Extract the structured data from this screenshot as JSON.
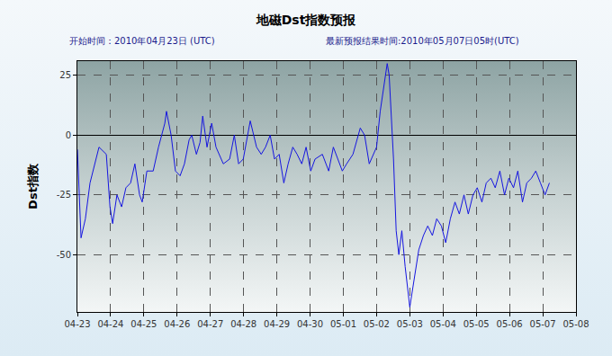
{
  "chart_data": {
    "type": "line",
    "title": "地磁Dst指数预报",
    "annotations": [
      "开始时间：2010年04月23日 (UTC)",
      "最新预报结果时间:2010年05月07日05时(UTC)"
    ],
    "ylabel": "Dst指数",
    "x": [
      0,
      0.11,
      0.24,
      0.38,
      0.65,
      0.87,
      0.98,
      1.06,
      1.19,
      1.33,
      1.46,
      1.6,
      1.73,
      1.87,
      1.95,
      2.09,
      2.28,
      2.44,
      2.63,
      2.68,
      2.82,
      2.95,
      3.09,
      3.22,
      3.36,
      3.44,
      3.58,
      3.69,
      3.77,
      3.9,
      4.04,
      4.17,
      4.39,
      4.58,
      4.72,
      4.85,
      4.99,
      5.12,
      5.2,
      5.39,
      5.53,
      5.66,
      5.8,
      5.93,
      6.07,
      6.21,
      6.34,
      6.48,
      6.61,
      6.75,
      6.88,
      7.02,
      7.15,
      7.37,
      7.56,
      7.7,
      7.83,
      7.97,
      8.1,
      8.29,
      8.51,
      8.64,
      8.78,
      9.0,
      9.11,
      9.32,
      9.38,
      9.51,
      9.59,
      9.67,
      9.76,
      9.86,
      10.0,
      10.14,
      10.27,
      10.41,
      10.54,
      10.68,
      10.81,
      10.95,
      11.08,
      11.22,
      11.36,
      11.49,
      11.63,
      11.76,
      11.9,
      12.03,
      12.17,
      12.3,
      12.44,
      12.57,
      12.71,
      12.85,
      12.98,
      13.12,
      13.25,
      13.39,
      13.52,
      13.66,
      13.79,
      13.93,
      14.07,
      14.2
    ],
    "series": [
      {
        "name": "Dst",
        "color": "#1515e0",
        "values": [
          -6,
          -43,
          -35,
          -20,
          -5,
          -8,
          -30,
          -37,
          -25,
          -30,
          -22,
          -20,
          -12,
          -25,
          -28,
          -15,
          -15,
          -5,
          5,
          10,
          0,
          -15,
          -17,
          -12,
          -2,
          0,
          -8,
          -3,
          8,
          -5,
          5,
          -5,
          -12,
          -10,
          0,
          -12,
          -10,
          0,
          6,
          -5,
          -8,
          -5,
          0,
          -10,
          -8,
          -20,
          -12,
          -5,
          -8,
          -12,
          -5,
          -15,
          -10,
          -8,
          -15,
          -5,
          -10,
          -15,
          -12,
          -8,
          3,
          0,
          -12,
          -5,
          10,
          30,
          25,
          -10,
          -40,
          -50,
          -40,
          -55,
          -72,
          -60,
          -48,
          -42,
          -38,
          -42,
          -35,
          -38,
          -45,
          -35,
          -28,
          -33,
          -25,
          -33,
          -25,
          -22,
          -28,
          -20,
          -18,
          -22,
          -15,
          -25,
          -18,
          -22,
          -15,
          -28,
          -20,
          -18,
          -15,
          -20,
          -25,
          -20
        ]
      }
    ],
    "xlim": [
      0,
      15
    ],
    "xticks": [
      {
        "value": 0,
        "label": "04-23"
      },
      {
        "value": 1,
        "label": "04-24"
      },
      {
        "value": 2,
        "label": "04-25"
      },
      {
        "value": 3,
        "label": "04-26"
      },
      {
        "value": 4,
        "label": "04-27"
      },
      {
        "value": 5,
        "label": "04-28"
      },
      {
        "value": 6,
        "label": "04-29"
      },
      {
        "value": 7,
        "label": "04-30"
      },
      {
        "value": 8,
        "label": "05-01"
      },
      {
        "value": 9,
        "label": "05-02"
      },
      {
        "value": 10,
        "label": "05-03"
      },
      {
        "value": 11,
        "label": "05-04"
      },
      {
        "value": 12,
        "label": "05-05"
      },
      {
        "value": 13,
        "label": "05-06"
      },
      {
        "value": 14,
        "label": "05-07"
      },
      {
        "value": 15,
        "label": "05-08"
      }
    ],
    "ylim": [
      -74,
      31
    ],
    "yticks": [
      -50,
      -25,
      0,
      25
    ],
    "grid": true
  }
}
